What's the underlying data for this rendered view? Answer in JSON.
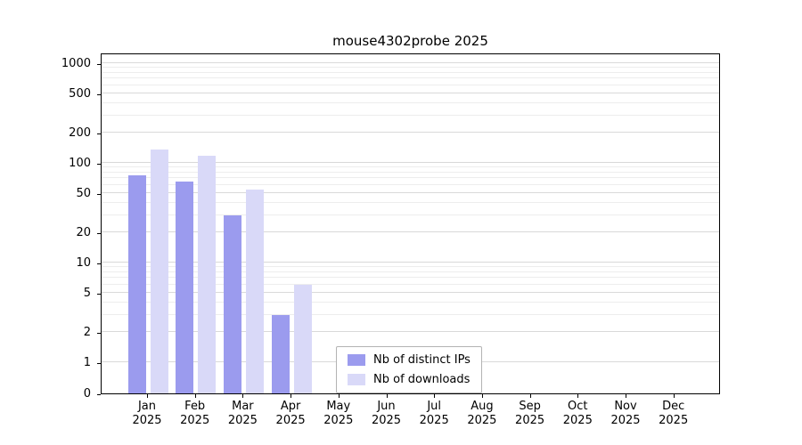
{
  "chart_data": {
    "type": "bar",
    "title": "mouse4302probe 2025",
    "categories": [
      "Jan",
      "Feb",
      "Mar",
      "Apr",
      "May",
      "Jun",
      "Jul",
      "Aug",
      "Sep",
      "Oct",
      "Nov",
      "Dec"
    ],
    "category_year": "2025",
    "series": [
      {
        "name": "Nb of distinct IPs",
        "color": "#9b9bee",
        "values": [
          75,
          65,
          30,
          3,
          null,
          null,
          null,
          null,
          null,
          null,
          null,
          null
        ]
      },
      {
        "name": "Nb of downloads",
        "color": "#d9d9f8",
        "values": [
          135,
          118,
          54,
          6,
          null,
          null,
          null,
          null,
          null,
          null,
          null,
          null
        ]
      }
    ],
    "yticks": [
      0,
      1,
      2,
      5,
      10,
      20,
      50,
      100,
      200,
      500,
      1000
    ],
    "xlabel": "",
    "ylabel": "",
    "ylim": [
      0,
      1000
    ],
    "scale": "log-like with ticks 0,1,2,5,10,20,50,100,200,500,1000",
    "grid": true,
    "legend_position": "bottom-center-inside"
  }
}
